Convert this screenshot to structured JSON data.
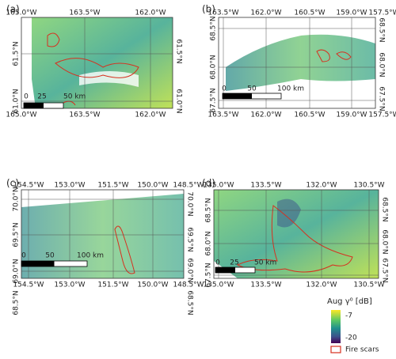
{
  "panels": [
    {
      "label": "(a)",
      "top_ticks": [
        "165.0°W",
        "163.5°W",
        "162.0°W"
      ],
      "bottom_ticks": [
        "165.0°W",
        "163.5°W",
        "162.0°W"
      ],
      "left_ticks": [
        "61.5°N",
        "61.0°N"
      ],
      "right_ticks": [
        "61.5°N",
        "61.0°N"
      ],
      "scale": [
        "0",
        "25",
        "50 km"
      ]
    },
    {
      "label": "(b)",
      "top_ticks": [
        "163.5°W",
        "162.0°W",
        "160.5°W",
        "159.0°W",
        "157.5°W"
      ],
      "bottom_ticks": [
        "163.5°W",
        "162.0°W",
        "160.5°W",
        "159.0°W",
        "157.5°W"
      ],
      "left_ticks": [
        "68.5°N",
        "68.0°N",
        "67.5°N"
      ],
      "right_ticks": [
        "68.5°N",
        "68.0°N",
        "67.5°N"
      ],
      "scale": [
        "0",
        "50",
        "100 km"
      ]
    },
    {
      "label": "(c)",
      "top_ticks": [
        "154.5°W",
        "153.0°W",
        "151.5°W",
        "150.0°W",
        "148.5°W"
      ],
      "bottom_ticks": [
        "154.5°W",
        "153.0°W",
        "151.5°W",
        "150.0°W",
        "148.5°W"
      ],
      "left_ticks": [
        "70.0°N",
        "69.5°N",
        "69.0°N",
        "68.5°N"
      ],
      "right_ticks": [
        "70.0°N",
        "69.5°N",
        "69.0°N",
        "68.5°N"
      ],
      "scale": [
        "0",
        "50",
        "100 km"
      ]
    },
    {
      "label": "(d)",
      "top_ticks": [
        "135.0°W",
        "133.5°W",
        "132.0°W",
        "130.5°W"
      ],
      "bottom_ticks": [
        "135.0°W",
        "133.5°W",
        "132.0°W",
        "130.5°W"
      ],
      "left_ticks": [
        "68.5°N",
        "68.0°N",
        "67.5°N"
      ],
      "right_ticks": [
        "68.5°N",
        "68.0°N",
        "67.5°N"
      ],
      "scale": [
        "0",
        "25",
        "50 km"
      ]
    }
  ],
  "legend": {
    "title": "Aug γ⁰ [dB]",
    "max": "-7",
    "min": "-20",
    "fire": "Fire scars"
  }
}
